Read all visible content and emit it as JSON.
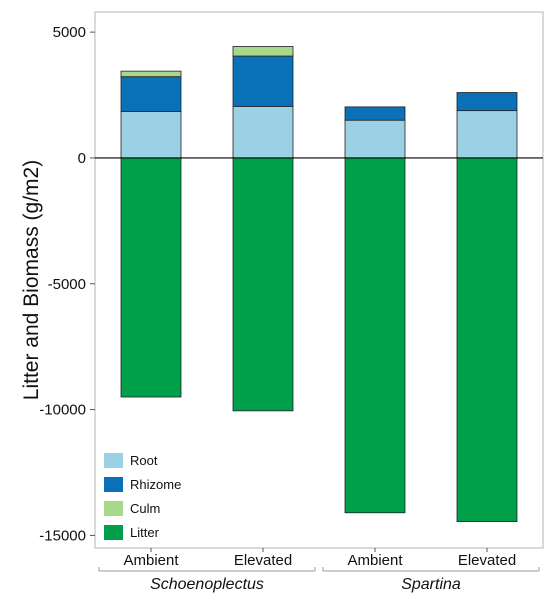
{
  "chart_data": {
    "type": "bar",
    "stacked": true,
    "title": "",
    "xlabel": "",
    "ylabel": "Litter and Biomass (g/m2)",
    "ylim": [
      -15500,
      5800
    ],
    "yticks": [
      5000,
      0,
      -5000,
      -10000,
      -15000
    ],
    "ytick_labels": [
      "5000",
      "0",
      "-5000",
      "-10000",
      "-15000"
    ],
    "grid": false,
    "zero_line": true,
    "legend_position": "bottom-left",
    "groups": [
      {
        "label": "Schoenoplectus",
        "categories": [
          "Ambient",
          "Elevated"
        ]
      },
      {
        "label": "Spartina",
        "categories": [
          "Ambient",
          "Elevated"
        ]
      }
    ],
    "categories": [
      "Ambient",
      "Elevated",
      "Ambient",
      "Elevated"
    ],
    "series": [
      {
        "name": "Root",
        "color": "#9cd0e4",
        "values": [
          1850,
          2050,
          1500,
          1880
        ]
      },
      {
        "name": "Rhizome",
        "color": "#0a70b8",
        "values": [
          1380,
          2000,
          530,
          720
        ]
      },
      {
        "name": "Culm",
        "color": "#a8d88a",
        "values": [
          220,
          380,
          0,
          0
        ]
      },
      {
        "name": "Litter",
        "color": "#00a04a",
        "values": [
          -9500,
          -10050,
          -14100,
          -14450
        ]
      }
    ]
  }
}
